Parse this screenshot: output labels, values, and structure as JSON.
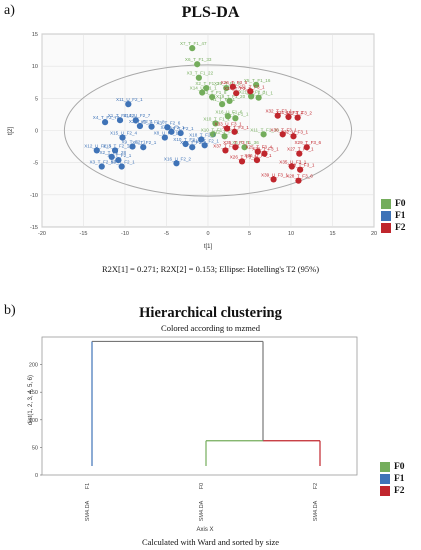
{
  "panel_a_label": "a)",
  "panel_b_label": "b)",
  "scatter_title": "PLS-DA",
  "scatter_caption": "R2X[1] = 0.271; R2X[2] = 0.153; Ellipse: Hotelling's T2 (95%)",
  "dendro_title": "Hierarchical clustering",
  "dendro_subtitle": "Colored according to mzmed",
  "dendro_caption": "Calculated with Ward and sorted by size",
  "colors": {
    "F0": "#74ad5c",
    "F1": "#3f73b7",
    "F2": "#c0262d"
  },
  "legend": [
    "F0",
    "F1",
    "F2"
  ],
  "chart_data": [
    {
      "type": "scatter",
      "title": "PLS-DA",
      "xlabel": "t[1]",
      "ylabel": "t[2]",
      "xlim": [
        -20,
        20
      ],
      "ylim": [
        -15,
        15
      ],
      "xticks": [
        -20,
        -15,
        -10,
        -5,
        0,
        5,
        10,
        15,
        20
      ],
      "yticks": [
        -15,
        -10,
        -5,
        0,
        5,
        10,
        15
      ],
      "grid": true,
      "legend_position": "right",
      "ellipse": {
        "cx": 0,
        "cy": 0,
        "rx": 17.3,
        "ry": 10.2,
        "label": "Hotelling's T2 (95%)"
      },
      "series": [
        {
          "name": "F0",
          "points": [
            {
              "x": -1.9,
              "y": 12.8,
              "label": "X7_T_F1_47"
            },
            {
              "x": -1.3,
              "y": 10.3,
              "label": "X6_T_F1_33"
            },
            {
              "x": -1.1,
              "y": 8.2,
              "label": "X3_T_F1_22"
            },
            {
              "x": -0.7,
              "y": 5.9,
              "label": "X14_U_F1_1"
            },
            {
              "x": -0.2,
              "y": 6.6,
              "label": "X2_T_F1_1"
            },
            {
              "x": 0.5,
              "y": 5.2,
              "label": "X13_T_F1_8"
            },
            {
              "x": 2.2,
              "y": 6.6,
              "label": "X20_T_F1_6"
            },
            {
              "x": 1.7,
              "y": 4.1,
              "label": "X1_T_F1_1"
            },
            {
              "x": 2.6,
              "y": 4.6,
              "label": "X19_T_F1_20"
            },
            {
              "x": 5.8,
              "y": 7.1,
              "label": "X5_T_F1_16"
            },
            {
              "x": 5.2,
              "y": 5.3,
              "label": "X21_T_F1_1"
            },
            {
              "x": 6.1,
              "y": 5.1,
              "label": "X15_T_F1_1"
            },
            {
              "x": 2.4,
              "y": 2.2,
              "label": "X16_U_F1_6"
            },
            {
              "x": 3.3,
              "y": 1.9,
              "label": "X4_T_F1_1"
            },
            {
              "x": 0.9,
              "y": 1.1,
              "label": "X10_T_F1_1"
            },
            {
              "x": 0.6,
              "y": -0.6,
              "label": "X10_T_F1_1"
            },
            {
              "x": 6.7,
              "y": -0.6,
              "label": "X11_T_F1_36"
            },
            {
              "x": 4.4,
              "y": -2.6,
              "label": "X4_T_F1_36"
            },
            {
              "x": 2.0,
              "y": -0.9,
              "label": "X12_T_F1_1"
            }
          ]
        },
        {
          "name": "F1",
          "points": [
            {
              "x": -9.6,
              "y": 4.1,
              "label": "X11_U_F2_1"
            },
            {
              "x": -10.6,
              "y": 1.6,
              "label": "X1_T_F2_32"
            },
            {
              "x": -12.4,
              "y": 1.3,
              "label": "X4_T_F2_74"
            },
            {
              "x": -8.7,
              "y": 1.6,
              "label": "X14_U_F2_7"
            },
            {
              "x": -8.2,
              "y": 0.7,
              "label": "X2_T_F2_1"
            },
            {
              "x": -6.8,
              "y": 0.6,
              "label": "X2_T_F2_8"
            },
            {
              "x": -4.9,
              "y": 0.5,
              "label": "X3_T_F2_6"
            },
            {
              "x": -4.4,
              "y": -0.2,
              "label": "X4_T_F2_1"
            },
            {
              "x": -3.3,
              "y": -0.4,
              "label": "X5_T_F2_1"
            },
            {
              "x": -10.3,
              "y": -1.1,
              "label": "X15_U_F2_4"
            },
            {
              "x": -5.2,
              "y": -1.1,
              "label": "X8_U_F2_1"
            },
            {
              "x": -7.8,
              "y": -2.6,
              "label": "X6_T_F2_1"
            },
            {
              "x": -9.1,
              "y": -2.5,
              "label": "X9_T_F2_1"
            },
            {
              "x": -13.4,
              "y": -3.1,
              "label": "X12_U_F2_5"
            },
            {
              "x": -11.2,
              "y": -3.1,
              "label": "X13_T_F2_1"
            },
            {
              "x": -11.6,
              "y": -4.1,
              "label": "X2_T_F2_28"
            },
            {
              "x": -10.8,
              "y": -4.6,
              "label": "X8_T_F2_1"
            },
            {
              "x": -12.8,
              "y": -5.6,
              "label": "X3_T_F2_56"
            },
            {
              "x": -10.4,
              "y": -5.6,
              "label": "X7_T_F2_1"
            },
            {
              "x": -2.7,
              "y": -2.1,
              "label": "X10_T_F2_1"
            },
            {
              "x": -1.9,
              "y": -2.6,
              "label": "X12_T_F2_1"
            },
            {
              "x": -0.4,
              "y": -2.3,
              "label": "X17_T_F2_1"
            },
            {
              "x": -0.8,
              "y": -1.4,
              "label": "X18_T_F2_1"
            },
            {
              "x": -3.8,
              "y": -5.1,
              "label": "X16_U_F2_2"
            }
          ]
        },
        {
          "name": "F2",
          "points": [
            {
              "x": 3.0,
              "y": 6.8,
              "label": "X26_T_F3_5"
            },
            {
              "x": 3.4,
              "y": 5.8,
              "label": "X24_T_F3_1"
            },
            {
              "x": 5.1,
              "y": 6.1,
              "label": "X31_T_F3_1"
            },
            {
              "x": 8.4,
              "y": 2.3,
              "label": "X32_T_F3_1"
            },
            {
              "x": 9.7,
              "y": 2.1,
              "label": "X31_U_F3_2"
            },
            {
              "x": 10.8,
              "y": 2.0,
              "label": "X32_T_F3_2"
            },
            {
              "x": 2.3,
              "y": 0.3,
              "label": "X33_U_F3_1"
            },
            {
              "x": 3.2,
              "y": -0.2,
              "label": "X34_T_F3_1"
            },
            {
              "x": 9.0,
              "y": -0.6,
              "label": "X30_T_F3_1"
            },
            {
              "x": 10.3,
              "y": -0.9,
              "label": "X32_U_F3_1"
            },
            {
              "x": 3.3,
              "y": -2.6,
              "label": "X35_T_F3_1"
            },
            {
              "x": 2.1,
              "y": -3.1,
              "label": "X37_T_F3_1"
            },
            {
              "x": 6.0,
              "y": -3.3,
              "label": "X25_T_F3_4"
            },
            {
              "x": 6.8,
              "y": -3.6,
              "label": "X38_T_F3_1"
            },
            {
              "x": 5.9,
              "y": -4.6,
              "label": "X36_U_F3_1"
            },
            {
              "x": 4.1,
              "y": -4.8,
              "label": "X26_T_F3_1"
            },
            {
              "x": 11.9,
              "y": -2.6,
              "label": "X29_T_F3_6"
            },
            {
              "x": 11.0,
              "y": -3.6,
              "label": "X27_T_F3_1"
            },
            {
              "x": 10.1,
              "y": -5.6,
              "label": "X35_U_F3_1"
            },
            {
              "x": 11.1,
              "y": -6.1,
              "label": "X28_T_F3_1"
            },
            {
              "x": 10.9,
              "y": -7.8,
              "label": "X28_T_F3_6"
            },
            {
              "x": 7.9,
              "y": -7.6,
              "label": "X39_U_F3_1"
            }
          ]
        }
      ]
    },
    {
      "type": "dendrogram",
      "title": "Hierarchical clustering",
      "subtitle": "Colored according to mzmed",
      "xlabel": "Axis X",
      "ylabel": "dist(1, 2, 3, 4, 5, 6)",
      "ylim": [
        0,
        250
      ],
      "yticks": [
        0,
        50,
        100,
        150,
        200
      ],
      "leaves": [
        {
          "name": "F1",
          "group": "F1",
          "tick": "SM4.DA"
        },
        {
          "name": "F0",
          "group": "F0",
          "tick": "SM4.DA"
        },
        {
          "name": "F2",
          "group": "F2",
          "tick": "SM4.DA"
        }
      ],
      "merges": [
        {
          "left": "F0",
          "right": "F2",
          "height": 62
        },
        {
          "left": "F1",
          "right": "F0+F2",
          "height": 242
        }
      ],
      "legend_position": "right"
    }
  ]
}
